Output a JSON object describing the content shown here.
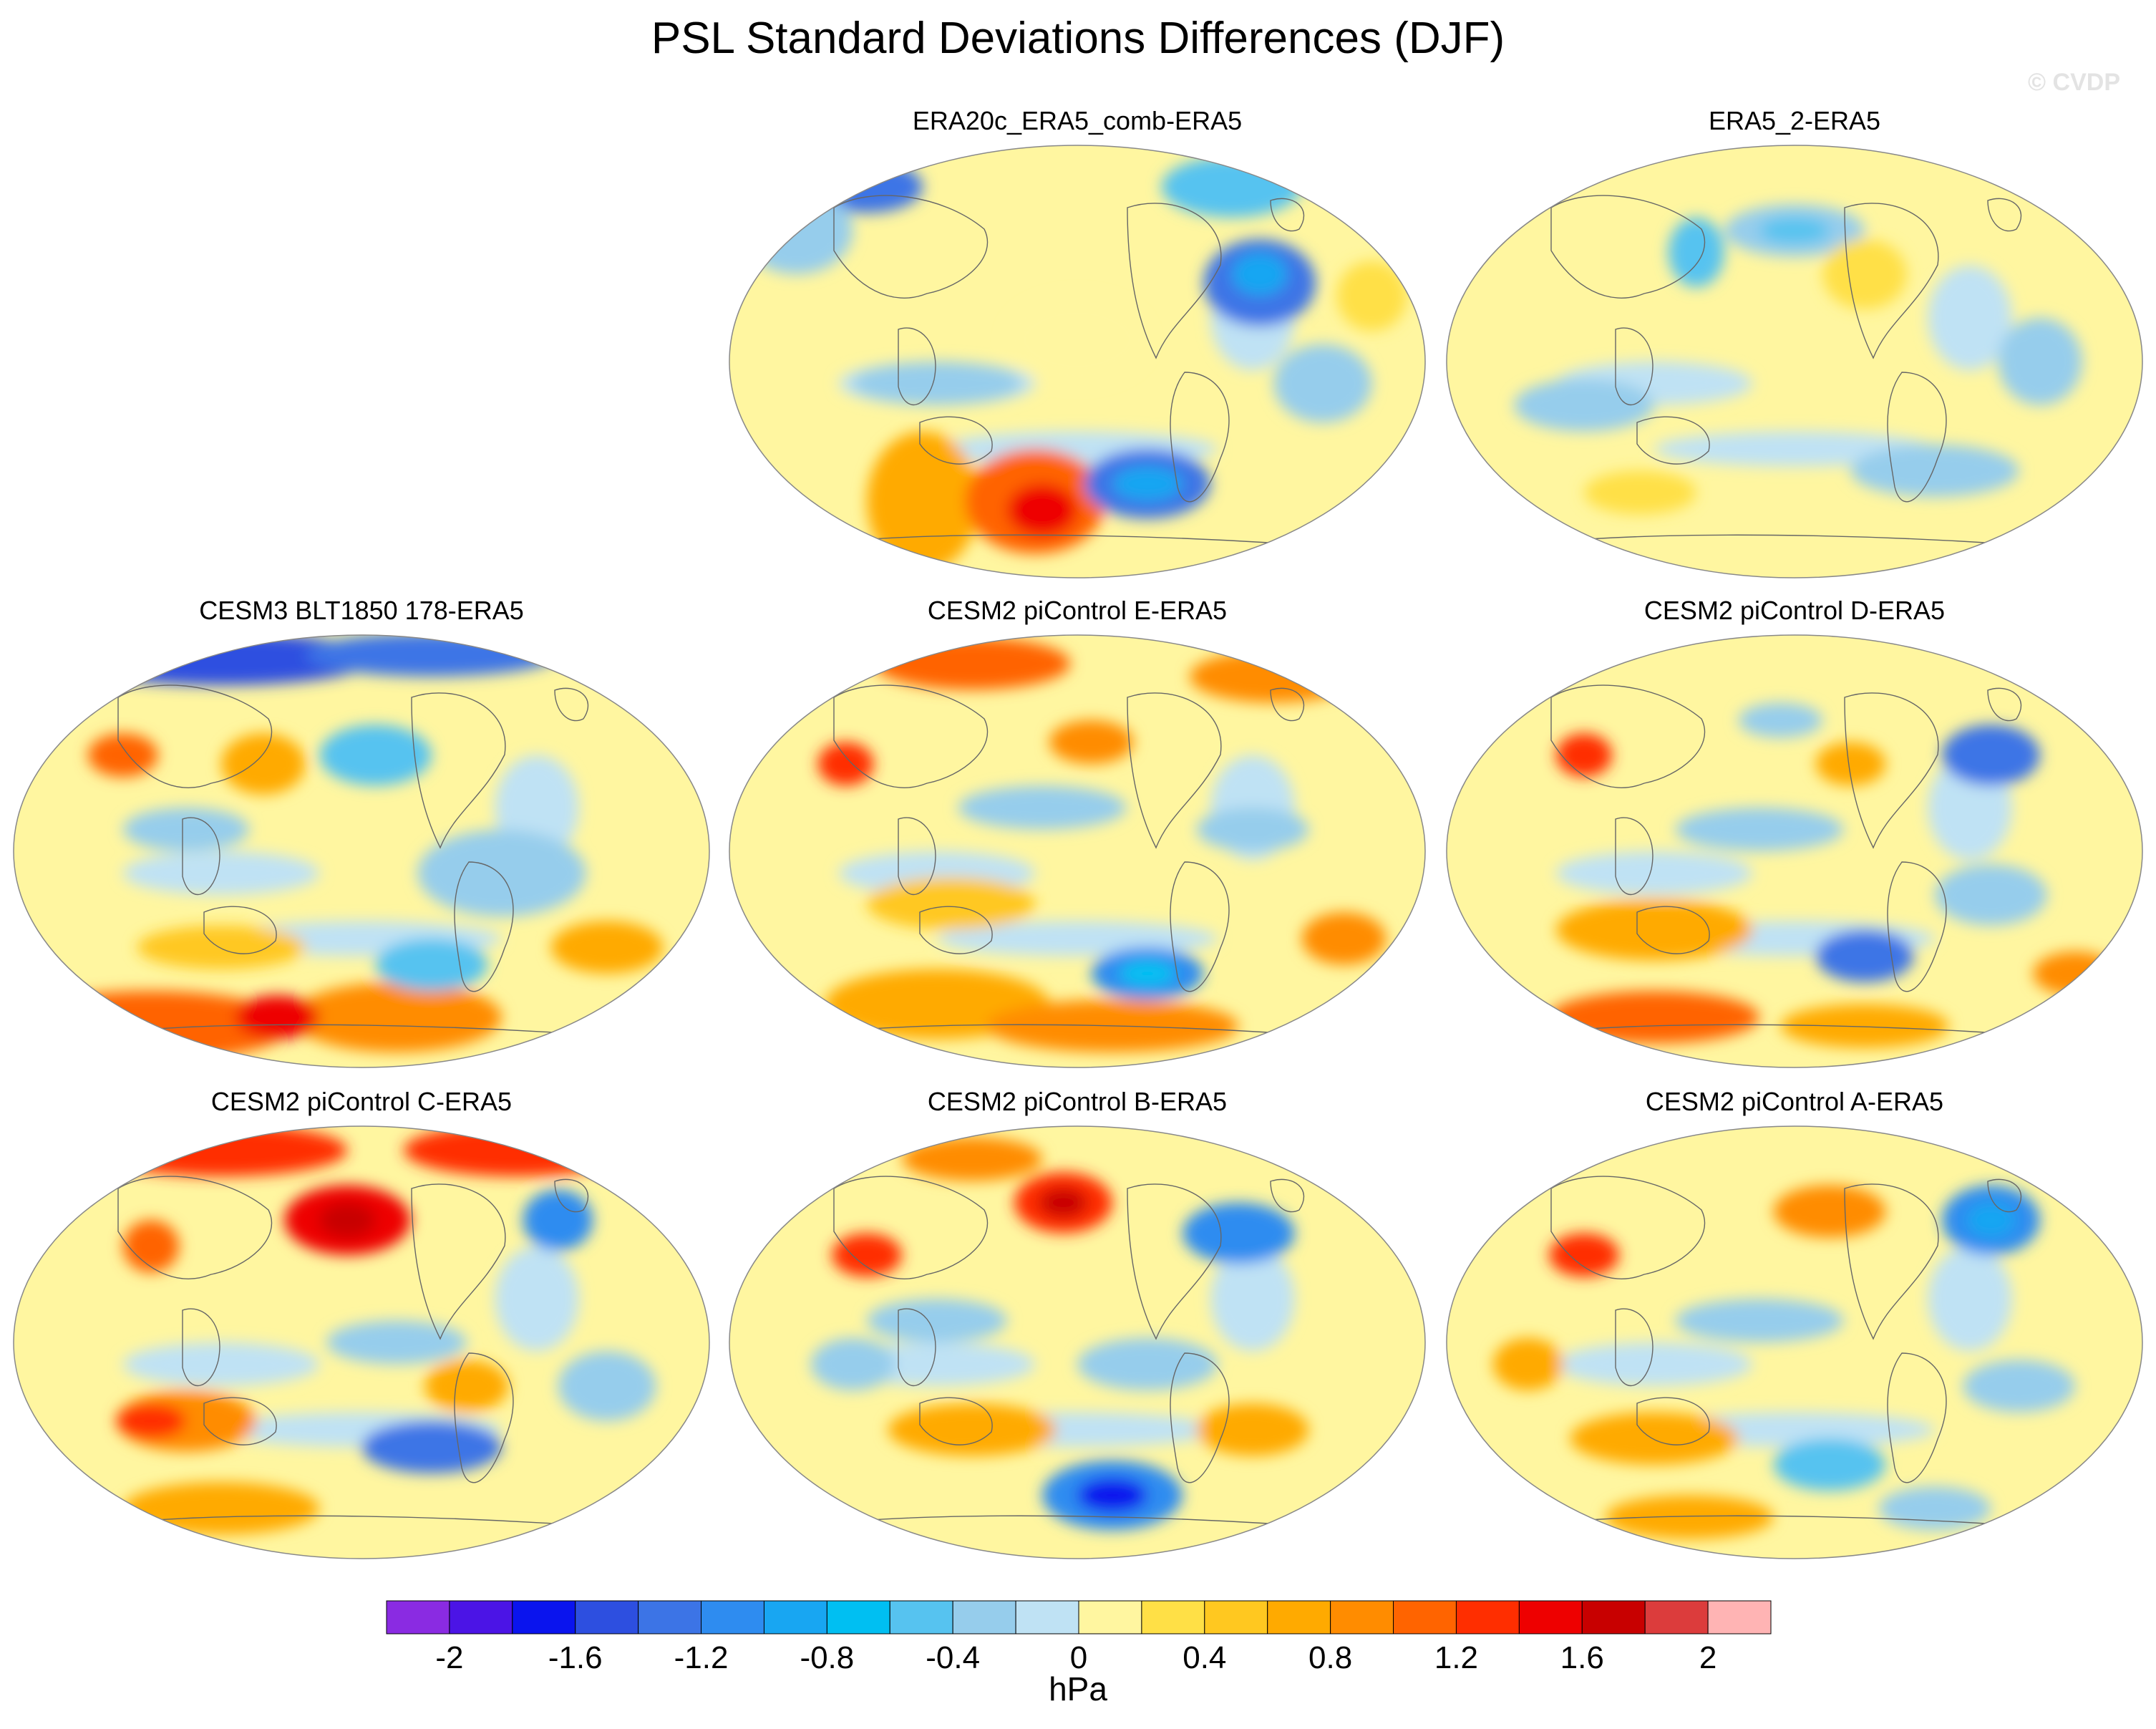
{
  "title": "PSL Standard Deviations Differences (DJF)",
  "watermark": "© CVDP",
  "colorbar": {
    "unit": "hPa",
    "colors": [
      "#8a2be2",
      "#4b14e6",
      "#0a14ee",
      "#2d4fe0",
      "#3c74e6",
      "#2e8cf0",
      "#18a6f2",
      "#00bff2",
      "#56c3f0",
      "#96cdec",
      "#bfe2f4",
      "#fff6a0",
      "#ffe046",
      "#ffc820",
      "#ffaa00",
      "#ff8c00",
      "#ff6400",
      "#ff2e00",
      "#ee0000",
      "#c80000",
      "#dc3c3c",
      "#ffb4b4"
    ],
    "ticks": [
      "-2",
      "-1.6",
      "-1.2",
      "-0.8",
      "-0.4",
      "0",
      "0.4",
      "0.8",
      "1.2",
      "1.6",
      "2"
    ]
  },
  "panels": [
    {
      "id": "p1",
      "title": "ERA20c_ERA5_comb-ERA5",
      "blobs": [
        [
          0.28,
          0.82,
          0.08,
          0.16,
          "#ffaa00"
        ],
        [
          0.44,
          0.82,
          0.1,
          0.12,
          "#ff6400"
        ],
        [
          0.45,
          0.84,
          0.05,
          0.06,
          "#ee0000"
        ],
        [
          0.6,
          0.78,
          0.09,
          0.08,
          "#3c74e6"
        ],
        [
          0.6,
          0.78,
          0.05,
          0.04,
          "#18a6f2"
        ],
        [
          0.76,
          0.32,
          0.08,
          0.1,
          "#3c74e6"
        ],
        [
          0.76,
          0.3,
          0.04,
          0.05,
          "#18a6f2"
        ],
        [
          0.2,
          0.1,
          0.08,
          0.06,
          "#3c74e6"
        ],
        [
          0.72,
          0.1,
          0.1,
          0.07,
          "#56c3f0"
        ],
        [
          0.1,
          0.2,
          0.08,
          0.1,
          "#96cdec"
        ],
        [
          0.3,
          0.55,
          0.12,
          0.05,
          "#96cdec"
        ],
        [
          0.85,
          0.55,
          0.07,
          0.09,
          "#96cdec"
        ],
        [
          0.5,
          0.45,
          0.1,
          0.1,
          "#fff6a0"
        ],
        [
          0.92,
          0.35,
          0.05,
          0.08,
          "#ffe046"
        ]
      ]
    },
    {
      "id": "p2",
      "title": "ERA5_2-ERA5",
      "blobs": [
        [
          0.5,
          0.2,
          0.1,
          0.06,
          "#96cdec"
        ],
        [
          0.5,
          0.2,
          0.05,
          0.03,
          "#56c3f0"
        ],
        [
          0.36,
          0.25,
          0.04,
          0.08,
          "#56c3f0"
        ],
        [
          0.6,
          0.3,
          0.06,
          0.08,
          "#ffe046"
        ],
        [
          0.2,
          0.6,
          0.1,
          0.06,
          "#96cdec"
        ],
        [
          0.7,
          0.75,
          0.12,
          0.06,
          "#96cdec"
        ],
        [
          0.85,
          0.5,
          0.06,
          0.1,
          "#96cdec"
        ],
        [
          0.28,
          0.8,
          0.08,
          0.05,
          "#ffe046"
        ]
      ]
    },
    {
      "id": "p3",
      "title": "CESM3 BLT1850 178-ERA5",
      "blobs": [
        [
          0.3,
          0.06,
          0.22,
          0.06,
          "#2d4fe0"
        ],
        [
          0.6,
          0.05,
          0.18,
          0.05,
          "#3c74e6"
        ],
        [
          0.2,
          0.9,
          0.2,
          0.08,
          "#ff6400"
        ],
        [
          0.55,
          0.88,
          0.15,
          0.08,
          "#ff8c00"
        ],
        [
          0.38,
          0.88,
          0.06,
          0.05,
          "#ee0000"
        ],
        [
          0.6,
          0.76,
          0.08,
          0.06,
          "#56c3f0"
        ],
        [
          0.36,
          0.3,
          0.06,
          0.07,
          "#ffaa00"
        ],
        [
          0.52,
          0.28,
          0.08,
          0.07,
          "#56c3f0"
        ],
        [
          0.16,
          0.28,
          0.05,
          0.05,
          "#ff6400"
        ],
        [
          0.25,
          0.45,
          0.09,
          0.05,
          "#96cdec"
        ],
        [
          0.7,
          0.55,
          0.12,
          0.1,
          "#96cdec"
        ],
        [
          0.3,
          0.72,
          0.12,
          0.05,
          "#ffc820"
        ],
        [
          0.85,
          0.72,
          0.08,
          0.06,
          "#ffaa00"
        ]
      ]
    },
    {
      "id": "p4",
      "title": "CESM2 piControl E-ERA5",
      "blobs": [
        [
          0.35,
          0.07,
          0.14,
          0.06,
          "#ff6400"
        ],
        [
          0.78,
          0.1,
          0.12,
          0.06,
          "#ff8c00"
        ],
        [
          0.3,
          0.85,
          0.16,
          0.08,
          "#ffaa00"
        ],
        [
          0.6,
          0.78,
          0.08,
          0.06,
          "#2e8cf0"
        ],
        [
          0.6,
          0.78,
          0.04,
          0.03,
          "#00bff2"
        ],
        [
          0.55,
          0.9,
          0.18,
          0.06,
          "#ff8c00"
        ],
        [
          0.52,
          0.25,
          0.06,
          0.05,
          "#ff8c00"
        ],
        [
          0.17,
          0.3,
          0.04,
          0.05,
          "#ff2e00"
        ],
        [
          0.45,
          0.4,
          0.12,
          0.05,
          "#96cdec"
        ],
        [
          0.75,
          0.45,
          0.08,
          0.05,
          "#96cdec"
        ],
        [
          0.32,
          0.62,
          0.12,
          0.06,
          "#ffc820"
        ],
        [
          0.88,
          0.7,
          0.06,
          0.06,
          "#ff8c00"
        ]
      ]
    },
    {
      "id": "p5",
      "title": "CESM2 piControl D-ERA5",
      "blobs": [
        [
          0.95,
          0.1,
          0.05,
          0.05,
          "#ff2e00"
        ],
        [
          0.78,
          0.28,
          0.07,
          0.07,
          "#3c74e6"
        ],
        [
          0.48,
          0.2,
          0.06,
          0.04,
          "#96cdec"
        ],
        [
          0.58,
          0.3,
          0.05,
          0.05,
          "#ffaa00"
        ],
        [
          0.2,
          0.28,
          0.04,
          0.05,
          "#ff2e00"
        ],
        [
          0.3,
          0.68,
          0.14,
          0.07,
          "#ffaa00"
        ],
        [
          0.6,
          0.74,
          0.07,
          0.06,
          "#3c74e6"
        ],
        [
          0.3,
          0.88,
          0.15,
          0.06,
          "#ff6400"
        ],
        [
          0.6,
          0.9,
          0.12,
          0.05,
          "#ffaa00"
        ],
        [
          0.78,
          0.6,
          0.08,
          0.07,
          "#96cdec"
        ],
        [
          0.45,
          0.45,
          0.12,
          0.05,
          "#96cdec"
        ],
        [
          0.9,
          0.78,
          0.06,
          0.05,
          "#ff8c00"
        ]
      ]
    },
    {
      "id": "p6",
      "title": "CESM2 piControl C-ERA5",
      "blobs": [
        [
          0.3,
          0.06,
          0.18,
          0.06,
          "#ff2e00"
        ],
        [
          0.72,
          0.06,
          0.16,
          0.06,
          "#ff2e00"
        ],
        [
          0.48,
          0.22,
          0.09,
          0.08,
          "#ee0000"
        ],
        [
          0.48,
          0.22,
          0.04,
          0.04,
          "#c80000"
        ],
        [
          0.78,
          0.22,
          0.05,
          0.07,
          "#2e8cf0"
        ],
        [
          0.2,
          0.28,
          0.04,
          0.06,
          "#ff6400"
        ],
        [
          0.25,
          0.68,
          0.1,
          0.07,
          "#ff8c00"
        ],
        [
          0.2,
          0.68,
          0.05,
          0.04,
          "#ff2e00"
        ],
        [
          0.6,
          0.74,
          0.1,
          0.06,
          "#3c74e6"
        ],
        [
          0.3,
          0.88,
          0.14,
          0.06,
          "#ffaa00"
        ],
        [
          0.55,
          0.5,
          0.1,
          0.05,
          "#96cdec"
        ],
        [
          0.85,
          0.6,
          0.07,
          0.08,
          "#96cdec"
        ],
        [
          0.65,
          0.6,
          0.06,
          0.06,
          "#ffaa00"
        ]
      ]
    },
    {
      "id": "p7",
      "title": "CESM2 piControl B-ERA5",
      "blobs": [
        [
          0.48,
          0.18,
          0.07,
          0.07,
          "#ff2e00"
        ],
        [
          0.48,
          0.18,
          0.035,
          0.035,
          "#c80000"
        ],
        [
          0.73,
          0.25,
          0.08,
          0.07,
          "#2e8cf0"
        ],
        [
          0.35,
          0.08,
          0.1,
          0.05,
          "#ff8c00"
        ],
        [
          0.2,
          0.3,
          0.05,
          0.05,
          "#ff2e00"
        ],
        [
          0.55,
          0.85,
          0.1,
          0.08,
          "#2e8cf0"
        ],
        [
          0.55,
          0.85,
          0.05,
          0.04,
          "#0a14ee"
        ],
        [
          0.35,
          0.7,
          0.12,
          0.06,
          "#ffaa00"
        ],
        [
          0.75,
          0.7,
          0.08,
          0.06,
          "#ffaa00"
        ],
        [
          0.3,
          0.45,
          0.1,
          0.05,
          "#96cdec"
        ],
        [
          0.6,
          0.55,
          0.1,
          0.06,
          "#96cdec"
        ],
        [
          0.18,
          0.55,
          0.06,
          0.06,
          "#96cdec"
        ]
      ]
    },
    {
      "id": "p8",
      "title": "CESM2 piControl A-ERA5",
      "blobs": [
        [
          0.78,
          0.22,
          0.07,
          0.08,
          "#2e8cf0"
        ],
        [
          0.78,
          0.22,
          0.035,
          0.04,
          "#18a6f2"
        ],
        [
          0.55,
          0.2,
          0.08,
          0.06,
          "#ff8c00"
        ],
        [
          0.92,
          0.1,
          0.06,
          0.05,
          "#ff6400"
        ],
        [
          0.2,
          0.3,
          0.05,
          0.05,
          "#ff2e00"
        ],
        [
          0.3,
          0.72,
          0.12,
          0.06,
          "#ffaa00"
        ],
        [
          0.55,
          0.78,
          0.08,
          0.06,
          "#56c3f0"
        ],
        [
          0.35,
          0.9,
          0.12,
          0.05,
          "#ffaa00"
        ],
        [
          0.7,
          0.88,
          0.08,
          0.05,
          "#96cdec"
        ],
        [
          0.45,
          0.45,
          0.12,
          0.05,
          "#96cdec"
        ],
        [
          0.82,
          0.6,
          0.08,
          0.06,
          "#96cdec"
        ],
        [
          0.12,
          0.55,
          0.05,
          0.06,
          "#ffaa00"
        ]
      ]
    }
  ]
}
